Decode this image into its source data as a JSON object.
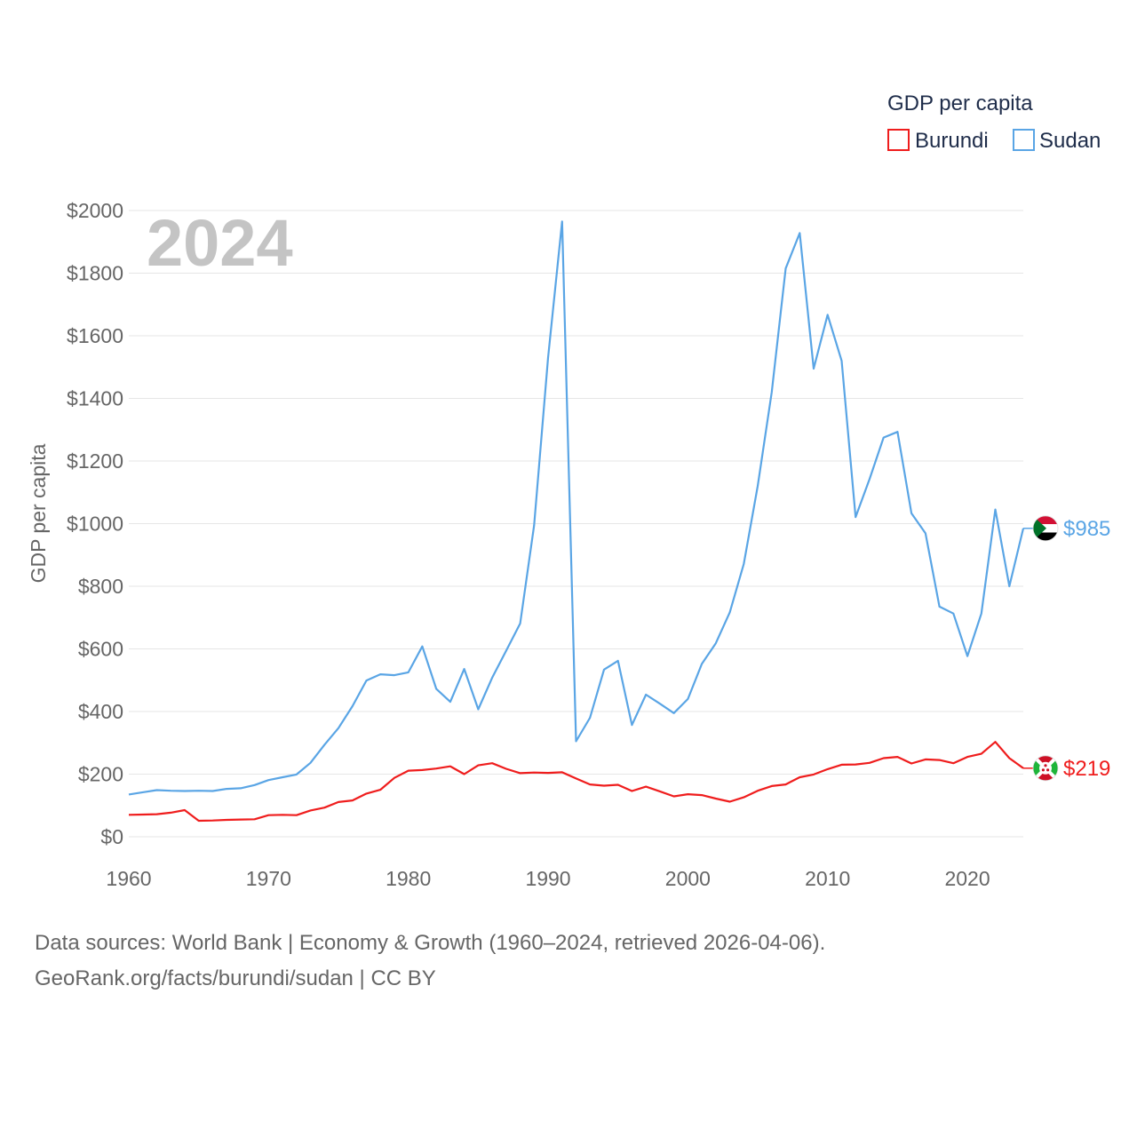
{
  "legend": {
    "title": "GDP per capita"
  },
  "year_label": "2024",
  "footer": {
    "line1": "Data sources: World Bank | Economy & Growth (1960–2024, retrieved 2026-04-06).",
    "line2": "GeoRank.org/facts/burundi/sudan | CC BY"
  },
  "colors": {
    "burundi": "#ef1d1d",
    "sudan": "#5aa5e5",
    "grid": "#e6e6e6",
    "axis_text": "#666666"
  },
  "icons": {
    "burundi_flag": "burundi-flag-icon",
    "sudan_flag": "sudan-flag-icon"
  },
  "chart_data": {
    "type": "line",
    "title": "",
    "xlabel": "",
    "ylabel": "GDP per capita",
    "xlim": [
      1960,
      2024
    ],
    "ylim": [
      0,
      2000
    ],
    "x_ticks": [
      "1960",
      "1970",
      "1980",
      "1990",
      "2000",
      "2010",
      "2020"
    ],
    "y_ticks": [
      "$0",
      "$200",
      "$400",
      "$600",
      "$800",
      "$1000",
      "$1200",
      "$1400",
      "$1600",
      "$1800",
      "$2000"
    ],
    "x": [
      1960,
      1961,
      1962,
      1963,
      1964,
      1965,
      1966,
      1967,
      1968,
      1969,
      1970,
      1971,
      1972,
      1973,
      1974,
      1975,
      1976,
      1977,
      1978,
      1979,
      1980,
      1981,
      1982,
      1983,
      1984,
      1985,
      1986,
      1987,
      1988,
      1989,
      1990,
      1991,
      1992,
      1993,
      1994,
      1995,
      1996,
      1997,
      1998,
      1999,
      2000,
      2001,
      2002,
      2003,
      2004,
      2005,
      2006,
      2007,
      2008,
      2009,
      2010,
      2011,
      2012,
      2013,
      2014,
      2015,
      2016,
      2017,
      2018,
      2019,
      2020,
      2021,
      2022,
      2023,
      2024
    ],
    "series": [
      {
        "name": "Burundi",
        "end_label": "$219",
        "values": [
          70,
          71,
          72,
          77,
          85,
          51,
          52,
          54,
          55,
          56,
          69,
          70,
          69,
          84,
          93,
          111,
          116,
          138,
          150,
          188,
          211,
          213,
          218,
          225,
          200,
          228,
          235,
          217,
          203,
          205,
          204,
          206,
          186,
          167,
          163,
          166,
          146,
          160,
          145,
          129,
          136,
          133,
          122,
          112,
          126,
          147,
          162,
          167,
          190,
          199,
          216,
          230,
          231,
          236,
          251,
          255,
          234,
          247,
          245,
          235,
          255,
          265,
          303,
          251,
          219
        ]
      },
      {
        "name": "Sudan",
        "end_label": "$985",
        "values": [
          135,
          142,
          149,
          147,
          146,
          147,
          146,
          153,
          155,
          165,
          181,
          190,
          199,
          236,
          294,
          347,
          417,
          499,
          519,
          516,
          525,
          608,
          472,
          431,
          536,
          407,
          508,
          594,
          681,
          995,
          1530,
          1965,
          305,
          380,
          534,
          562,
          357,
          454,
          425,
          395,
          440,
          552,
          618,
          717,
          871,
          1120,
          1420,
          1815,
          1928,
          1495,
          1667,
          1520,
          1021,
          1142,
          1275,
          1293,
          1033,
          969,
          735,
          713,
          577,
          713,
          1045,
          800,
          985
        ]
      }
    ]
  }
}
